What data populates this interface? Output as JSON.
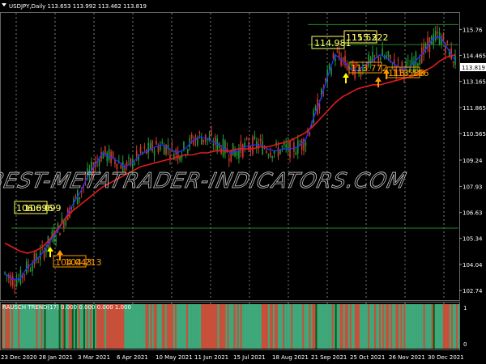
{
  "chart_data": {
    "type": "line",
    "title": "USDJPY,Daily  113.653 113.992 113.462 113.819",
    "symbol": "USDJPY,Daily",
    "ohlc": {
      "open": 113.653,
      "high": 113.992,
      "low": 113.462,
      "close": 113.819
    },
    "watermark": "BEST-METATRADER-INDICATORS.COM",
    "x_tick_labels": [
      "23 Dec 2020",
      "28 Jan 2021",
      "3 Mar 2021",
      "6 Apr 2021",
      "10 May 2021",
      "11 Jun 2021",
      "15 Jul 2021",
      "18 Aug 2021",
      "21 Sep 2021",
      "25 Oct 2021",
      "26 Nov 2021",
      "30 Dec 2021"
    ],
    "y_tick_labels": [
      "115.76",
      "114.465",
      "113.165",
      "111.865",
      "110.565",
      "109.24",
      "107.93",
      "106.63",
      "105.34",
      "104.04",
      "102.74"
    ],
    "ylim": [
      102.3,
      116.5
    ],
    "current_price": "113.819",
    "current_price_color": "#ffffff",
    "series": [
      {
        "name": "fast",
        "color": "#1e32ff",
        "values": [
          103.6,
          103.3,
          103.3,
          103.9,
          104.2,
          104.6,
          105.2,
          105.7,
          106.3,
          107.0,
          107.6,
          108.4,
          109.0,
          109.6,
          109.4,
          109.2,
          108.9,
          109.1,
          109.5,
          109.7,
          109.9,
          110.0,
          109.8,
          109.6,
          109.8,
          110.2,
          110.4,
          110.3,
          110.1,
          109.9,
          109.6,
          109.7,
          109.9,
          110.0,
          110.0,
          109.8,
          109.7,
          109.8,
          109.8,
          109.9,
          110.2,
          111.2,
          112.2,
          113.4,
          114.5,
          114.2,
          113.8,
          113.7,
          114.0,
          114.2,
          114.5,
          114.3,
          114.0,
          113.8,
          113.9,
          114.3,
          114.7,
          115.3,
          115.4,
          114.8,
          114.2
        ]
      },
      {
        "name": "slow",
        "color": "#e31b1b",
        "values": [
          105.1,
          104.9,
          104.7,
          104.6,
          104.7,
          104.9,
          105.3,
          105.8,
          106.3,
          106.7,
          107.0,
          107.3,
          107.6,
          107.9,
          108.1,
          108.3,
          108.5,
          108.7,
          108.9,
          109.0,
          109.1,
          109.2,
          109.3,
          109.4,
          109.5,
          109.5,
          109.6,
          109.6,
          109.7,
          109.7,
          109.7,
          109.8,
          109.8,
          109.8,
          109.9,
          109.9,
          110.0,
          110.1,
          110.2,
          110.4,
          110.6,
          110.9,
          111.3,
          111.7,
          112.1,
          112.4,
          112.6,
          112.8,
          112.9,
          113.0,
          113.0,
          113.1,
          113.2,
          113.3,
          113.4,
          113.5,
          113.7,
          113.9,
          114.2,
          114.4,
          114.5
        ]
      }
    ],
    "horizontal_levels": [
      {
        "value": 116.0,
        "color": "#1f8a1f"
      },
      {
        "value": 115.0,
        "color": "#1f8a1f"
      },
      {
        "value": 105.85,
        "color": "#1f8a1f"
      }
    ],
    "price_labels": [
      {
        "text": "114.981",
        "color": "#ffff66",
        "boxed": true
      },
      {
        "text": "115.52",
        "color": "#ffff66",
        "boxed": true
      },
      {
        "text": "115.322",
        "color": "#ffff66",
        "boxed": false
      },
      {
        "text": "113.772",
        "color": "#ff9900",
        "boxed": true
      },
      {
        "text": "113.588",
        "color": "#ff9900",
        "boxed": true
      },
      {
        "text": "113.596",
        "color": "#ff9900",
        "boxed": false
      },
      {
        "text": "106.096",
        "color": "#ffff66",
        "boxed": true
      },
      {
        "text": "106.099",
        "color": "#ffff66",
        "boxed": false
      },
      {
        "text": "104.043",
        "color": "#ff9900",
        "boxed": true
      },
      {
        "text": "104.213",
        "color": "#ff9900",
        "boxed": false
      }
    ],
    "signal_arrows": [
      {
        "color": "#ffff00",
        "direction": "up"
      },
      {
        "color": "#ff9900",
        "direction": "up"
      },
      {
        "color": "#ffff00",
        "direction": "up"
      },
      {
        "color": "#ff9900",
        "direction": "up"
      },
      {
        "color": "#ff9900",
        "direction": "up"
      }
    ],
    "indicator": {
      "title": "RAUSCH TREND(17) 0.000 0.000 0.000 1.000",
      "y_tick_labels": [
        "1",
        "0"
      ],
      "colors": {
        "bull": "#3fa87a",
        "bear": "#c8503a",
        "strong": "#0a5a1a"
      }
    },
    "grid": true
  }
}
